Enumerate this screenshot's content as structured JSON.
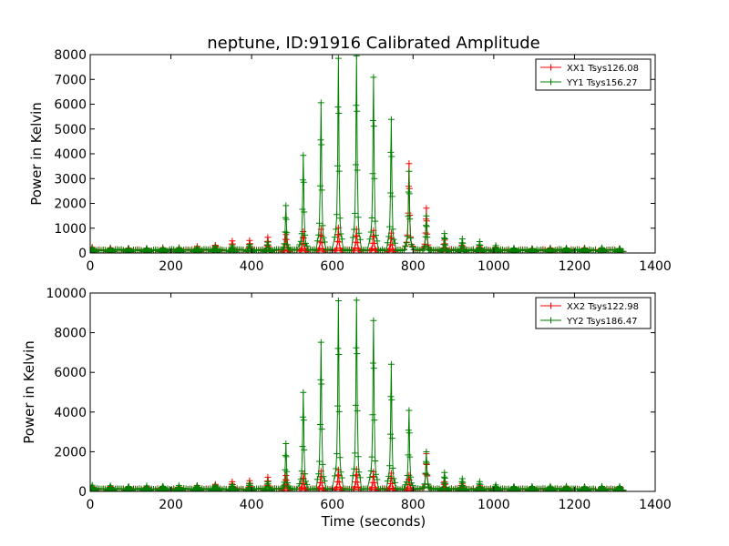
{
  "figure": {
    "title": "neptune, ID:91916 Calibrated Amplitude",
    "xlabel": "Time (seconds)"
  },
  "chart_data": [
    {
      "type": "line",
      "ylabel": "Power in Kelvin",
      "xlim": [
        0,
        1400
      ],
      "ylim": [
        0,
        8000
      ],
      "xticks": [
        0,
        200,
        400,
        600,
        800,
        1000,
        1200,
        1400
      ],
      "yticks": [
        0,
        1000,
        2000,
        3000,
        4000,
        5000,
        6000,
        7000,
        8000
      ],
      "legend_position": "top-right",
      "series_style": [
        {
          "name": "XX1 Tsys126.08",
          "color": "#ff0000"
        },
        {
          "name": "YY1 Tsys156.27",
          "color": "#008000"
        }
      ],
      "peaks": {
        "x": [
          5,
          50,
          95,
          140,
          180,
          220,
          265,
          310,
          352,
          395,
          440,
          485,
          528,
          572,
          615,
          660,
          702,
          746,
          790,
          833,
          878,
          922,
          965,
          1005,
          1050,
          1095,
          1140,
          1180,
          1225,
          1268,
          1312
        ],
        "xx": [
          220,
          210,
          200,
          200,
          200,
          210,
          250,
          320,
          480,
          500,
          650,
          750,
          850,
          950,
          1000,
          950,
          900,
          800,
          3600,
          1800,
          500,
          400,
          300,
          250,
          200,
          200,
          200,
          200,
          200,
          200,
          200
        ],
        "yy": [
          200,
          190,
          180,
          180,
          190,
          200,
          220,
          260,
          300,
          350,
          450,
          1900,
          3950,
          6050,
          7850,
          7950,
          7100,
          5400,
          3300,
          1500,
          800,
          550,
          450,
          280,
          200,
          190,
          190,
          190,
          190,
          190,
          190
        ]
      }
    },
    {
      "type": "line",
      "ylabel": "Power in Kelvin",
      "xlabel": "Time (seconds)",
      "xlim": [
        0,
        1400
      ],
      "ylim": [
        0,
        10000
      ],
      "xticks": [
        0,
        200,
        400,
        600,
        800,
        1000,
        1200,
        1400
      ],
      "yticks": [
        0,
        2000,
        4000,
        6000,
        8000,
        10000
      ],
      "legend_position": "top-right",
      "series_style": [
        {
          "name": "XX2 Tsys122.98",
          "color": "#ff0000"
        },
        {
          "name": "YY2 Tsys186.47",
          "color": "#008000"
        }
      ],
      "peaks": {
        "x": [
          5,
          50,
          95,
          140,
          180,
          220,
          265,
          310,
          352,
          395,
          440,
          485,
          528,
          572,
          615,
          660,
          702,
          746,
          790,
          833,
          878,
          922,
          965,
          1005,
          1050,
          1095,
          1140,
          1180,
          1225,
          1268,
          1312
        ],
        "xx": [
          250,
          240,
          230,
          230,
          230,
          240,
          280,
          350,
          500,
          550,
          700,
          800,
          900,
          1000,
          1100,
          1100,
          1000,
          900,
          800,
          1900,
          500,
          400,
          300,
          250,
          230,
          230,
          230,
          230,
          230,
          230,
          230
        ],
        "yy": [
          300,
          280,
          260,
          260,
          270,
          280,
          300,
          320,
          350,
          400,
          500,
          2400,
          5000,
          7500,
          9600,
          9650,
          8600,
          6400,
          4100,
          2000,
          950,
          650,
          500,
          320,
          260,
          250,
          250,
          250,
          250,
          250,
          250
        ]
      }
    }
  ]
}
